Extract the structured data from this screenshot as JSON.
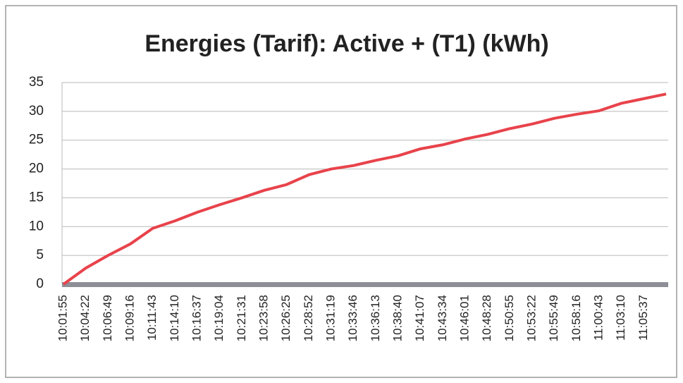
{
  "chart_data": {
    "type": "line",
    "title": "Energies (Tarif): Active + (T1) (kWh)",
    "categories": [
      "10:01:55",
      "10:04:22",
      "10:06:49",
      "10:09:16",
      "10:11:43",
      "10:14:10",
      "10:16:37",
      "10:19:04",
      "10:21:31",
      "10:23:58",
      "10:26:25",
      "10:28:52",
      "10:31:19",
      "10:33:46",
      "10:36:13",
      "10:38:40",
      "10:41:07",
      "10:43:34",
      "10:46:01",
      "10:48:28",
      "10:50:55",
      "10:53:22",
      "10:55:49",
      "10:58:16",
      "11:00:43",
      "11:03:10",
      "11:05:37",
      null
    ],
    "series": [
      {
        "color": "#e8434b",
        "values": [
          0,
          2.8,
          5,
          7,
          9.7,
          11,
          12.5,
          13.8,
          15,
          16.3,
          17.3,
          19,
          20,
          20.6,
          21.5,
          22.3,
          23.5,
          24.2,
          25.2,
          26,
          27,
          27.8,
          28.8,
          29.5,
          30.1,
          31.4,
          32.2,
          33
        ]
      }
    ],
    "ylim": [
      0,
      35
    ],
    "yticks": [
      0,
      5,
      10,
      15,
      20,
      25,
      30,
      35
    ],
    "grid": true
  }
}
